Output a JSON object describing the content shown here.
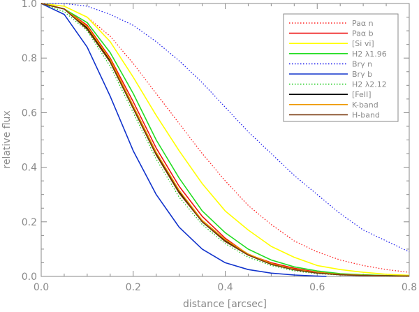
{
  "chart_data": {
    "type": "line",
    "title": "",
    "xlabel": "distance [arcsec]",
    "ylabel": "relative flux",
    "xlim": [
      0.0,
      0.8
    ],
    "ylim": [
      0.0,
      1.0
    ],
    "xticks": [
      "0.0",
      "0.2",
      "0.4",
      "0.6",
      "0.8"
    ],
    "yticks": [
      "0.0",
      "0.2",
      "0.4",
      "0.6",
      "0.8",
      "1.0"
    ],
    "grid": false,
    "legend_position": "top-right",
    "series": [
      {
        "name": "Paα n",
        "color": "#ff2020",
        "dash": "dotted",
        "x": [
          0,
          0.05,
          0.1,
          0.15,
          0.2,
          0.25,
          0.3,
          0.35,
          0.4,
          0.45,
          0.5,
          0.55,
          0.6,
          0.65,
          0.7,
          0.75,
          0.8
        ],
        "y": [
          1.0,
          0.99,
          0.95,
          0.88,
          0.78,
          0.67,
          0.56,
          0.45,
          0.35,
          0.26,
          0.19,
          0.13,
          0.09,
          0.06,
          0.04,
          0.025,
          0.015
        ]
      },
      {
        "name": "Paα b",
        "color": "#ee1111",
        "dash": "solid",
        "x": [
          0,
          0.05,
          0.1,
          0.15,
          0.2,
          0.25,
          0.3,
          0.35,
          0.4,
          0.45,
          0.5,
          0.55,
          0.6,
          0.65,
          0.7,
          0.75,
          0.8
        ],
        "y": [
          1.0,
          0.98,
          0.92,
          0.8,
          0.64,
          0.47,
          0.33,
          0.22,
          0.14,
          0.08,
          0.05,
          0.03,
          0.015,
          0.008,
          0.005,
          0.003,
          0.001
        ]
      },
      {
        "name": "[Si vi]",
        "color": "#ffff00",
        "dash": "solid",
        "x": [
          0,
          0.05,
          0.1,
          0.15,
          0.2,
          0.25,
          0.3,
          0.35,
          0.4,
          0.45,
          0.5,
          0.55,
          0.6,
          0.65,
          0.7,
          0.75,
          0.8
        ],
        "y": [
          1.0,
          0.99,
          0.95,
          0.86,
          0.73,
          0.59,
          0.46,
          0.34,
          0.24,
          0.17,
          0.11,
          0.07,
          0.04,
          0.025,
          0.015,
          0.008,
          0.004
        ]
      },
      {
        "name": "H2 λ1.96",
        "color": "#22dd22",
        "dash": "solid",
        "x": [
          0,
          0.05,
          0.1,
          0.15,
          0.2,
          0.25,
          0.3,
          0.35,
          0.4,
          0.45,
          0.5,
          0.55,
          0.6,
          0.65,
          0.7,
          0.75,
          0.8
        ],
        "y": [
          1.0,
          0.98,
          0.93,
          0.82,
          0.67,
          0.5,
          0.36,
          0.24,
          0.16,
          0.1,
          0.06,
          0.035,
          0.02,
          0.01,
          0.006,
          0.003,
          0.001
        ]
      },
      {
        "name": "Brγ n",
        "color": "#2222ee",
        "dash": "dotted",
        "x": [
          0,
          0.05,
          0.1,
          0.15,
          0.2,
          0.25,
          0.3,
          0.35,
          0.4,
          0.45,
          0.5,
          0.55,
          0.6,
          0.65,
          0.7,
          0.75,
          0.8
        ],
        "y": [
          1.0,
          1.0,
          0.99,
          0.96,
          0.92,
          0.86,
          0.79,
          0.71,
          0.62,
          0.53,
          0.45,
          0.37,
          0.3,
          0.23,
          0.17,
          0.13,
          0.09
        ]
      },
      {
        "name": "Brγ b",
        "color": "#1133cc",
        "dash": "solid",
        "x": [
          0,
          0.05,
          0.1,
          0.15,
          0.2,
          0.25,
          0.3,
          0.35,
          0.4,
          0.45,
          0.5,
          0.55,
          0.6,
          0.62
        ],
        "y": [
          1.0,
          0.96,
          0.84,
          0.66,
          0.46,
          0.3,
          0.18,
          0.1,
          0.05,
          0.025,
          0.012,
          0.005,
          0.001,
          0.0
        ]
      },
      {
        "name": "H2 λ2.12",
        "color": "#22cc22",
        "dash": "dotted",
        "x": [
          0,
          0.05,
          0.1,
          0.15,
          0.2,
          0.25,
          0.3,
          0.35,
          0.4,
          0.45,
          0.5,
          0.55,
          0.6,
          0.65,
          0.7,
          0.75,
          0.8
        ],
        "y": [
          1.0,
          0.97,
          0.9,
          0.77,
          0.6,
          0.43,
          0.29,
          0.19,
          0.12,
          0.07,
          0.04,
          0.02,
          0.01,
          0.005,
          0.003,
          0.001,
          0.0
        ]
      },
      {
        "name": "[FeII]",
        "color": "#000000",
        "dash": "solid",
        "x": [
          0,
          0.05,
          0.1,
          0.15,
          0.2,
          0.25,
          0.3,
          0.35,
          0.4,
          0.45,
          0.5,
          0.55,
          0.6,
          0.65,
          0.7,
          0.75,
          0.8
        ],
        "y": [
          1.0,
          0.98,
          0.91,
          0.79,
          0.62,
          0.45,
          0.31,
          0.2,
          0.13,
          0.08,
          0.045,
          0.025,
          0.013,
          0.007,
          0.004,
          0.002,
          0.001
        ]
      },
      {
        "name": "K-band",
        "color": "#ee9900",
        "dash": "solid",
        "x": [
          0,
          0.05,
          0.1,
          0.15,
          0.2,
          0.25,
          0.3,
          0.35,
          0.4,
          0.45,
          0.5,
          0.55,
          0.6,
          0.65,
          0.7,
          0.75,
          0.8
        ],
        "y": [
          1.0,
          0.98,
          0.915,
          0.795,
          0.625,
          0.455,
          0.315,
          0.205,
          0.135,
          0.082,
          0.047,
          0.026,
          0.014,
          0.008,
          0.004,
          0.002,
          0.001
        ]
      },
      {
        "name": "H-band",
        "color": "#7a3a10",
        "dash": "solid",
        "x": [
          0,
          0.05,
          0.1,
          0.15,
          0.2,
          0.25,
          0.3,
          0.35,
          0.4,
          0.45,
          0.5,
          0.55,
          0.6,
          0.65,
          0.7,
          0.75,
          0.8
        ],
        "y": [
          1.0,
          0.98,
          0.905,
          0.785,
          0.615,
          0.445,
          0.305,
          0.2,
          0.128,
          0.078,
          0.044,
          0.024,
          0.012,
          0.006,
          0.003,
          0.002,
          0.001
        ]
      }
    ]
  }
}
